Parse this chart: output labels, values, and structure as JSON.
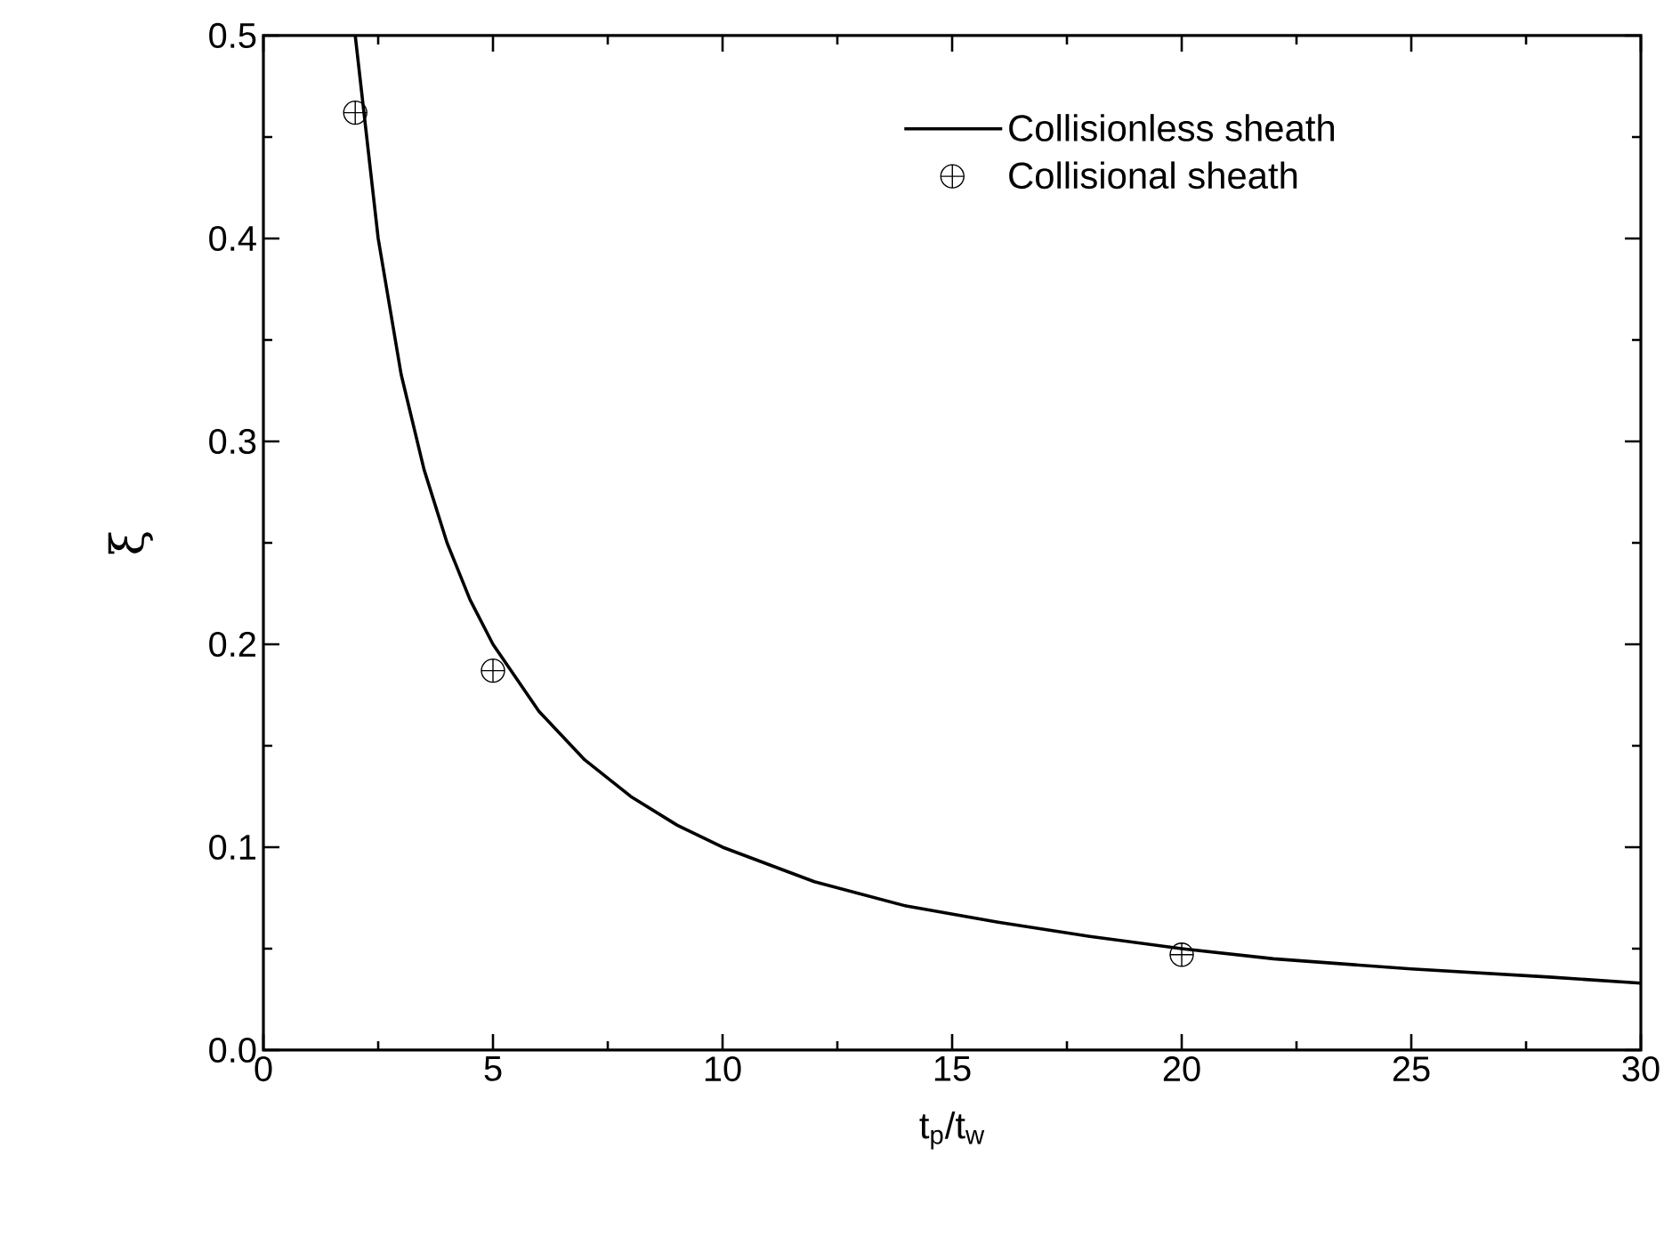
{
  "chart_data": {
    "type": "line",
    "xlabel": "t$_{p}$/t$_{w}$",
    "ylabel": "ξ",
    "xlim": [
      0,
      30
    ],
    "ylim": [
      0,
      0.5
    ],
    "xticks": [
      0,
      5,
      10,
      15,
      20,
      25,
      30
    ],
    "yticks": [
      {
        "value": 0,
        "label": "0.0"
      },
      0.1,
      0.2,
      0.3,
      0.4,
      0.5
    ],
    "legend": "top right",
    "series": [
      {
        "name": "Collisionless sheath",
        "color": "#000000",
        "marker": "none",
        "line_style": "solid",
        "x": [
          2,
          2.5,
          3,
          3.5,
          4,
          4.5,
          5,
          6,
          7,
          8,
          9,
          10,
          12,
          14,
          16,
          18,
          20,
          22,
          25,
          28,
          30
        ],
        "values": [
          0.5,
          0.4,
          0.333,
          0.286,
          0.25,
          0.222,
          0.2,
          0.167,
          0.143,
          0.125,
          0.111,
          0.1,
          0.083,
          0.071,
          0.063,
          0.056,
          0.05,
          0.045,
          0.04,
          0.036,
          0.033
        ]
      },
      {
        "name": "Collisional sheath",
        "type": "scatter",
        "color": "#000000",
        "marker": "cross",
        "x": [
          2,
          5,
          20
        ],
        "values": [
          0.462,
          0.187,
          0.047
        ]
      }
    ]
  }
}
